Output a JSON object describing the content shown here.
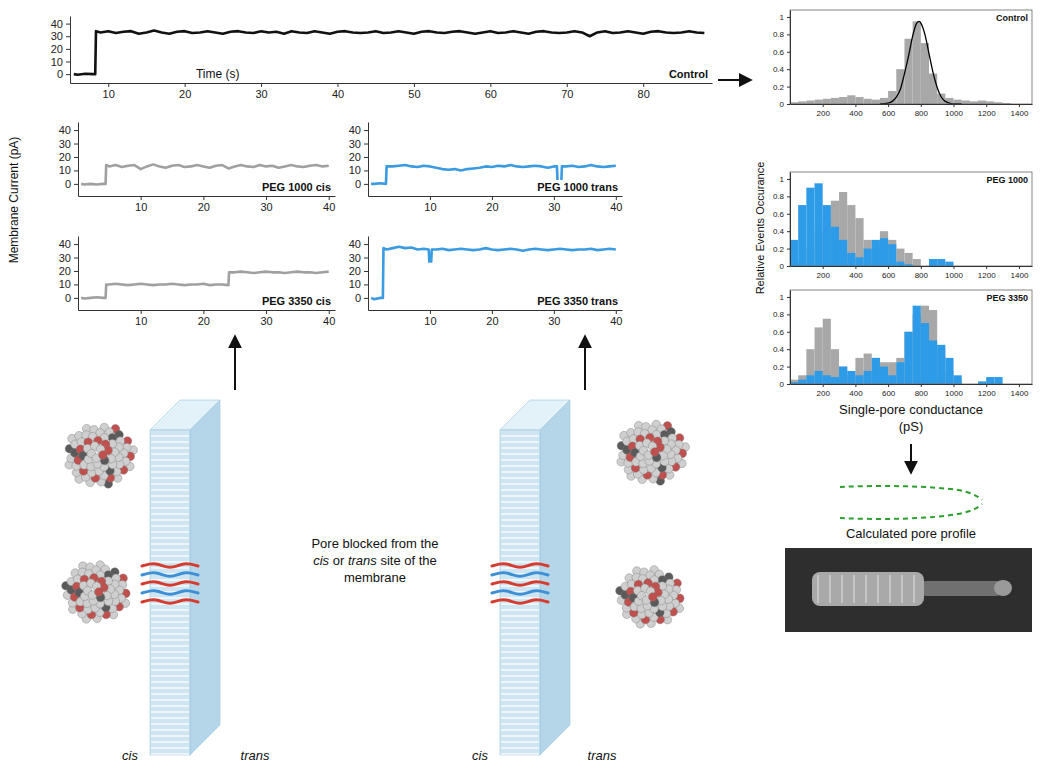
{
  "chart_data": [
    {
      "type": "line",
      "title": "Control",
      "x_label": "Time (s)",
      "color": "#111111",
      "x": [
        5.5,
        6,
        7,
        8,
        8.3,
        8.4,
        9,
        10,
        11,
        12,
        13,
        14,
        15,
        16,
        17,
        18,
        19,
        20,
        21,
        22,
        23,
        24,
        25,
        26,
        27,
        28,
        29,
        30,
        31,
        32,
        33,
        34,
        35,
        36,
        37,
        38,
        39,
        40,
        41,
        42,
        43,
        44,
        45,
        46,
        47,
        48,
        49,
        50,
        51,
        52,
        53,
        54,
        55,
        56,
        57,
        58,
        59,
        60,
        61,
        62,
        63,
        64,
        65,
        66,
        67,
        68,
        69,
        70,
        71,
        72,
        73,
        74,
        75,
        76,
        77,
        78,
        79,
        80,
        81,
        82,
        83,
        84,
        85,
        86,
        87,
        88
      ],
      "values": [
        0,
        -0.5,
        0.3,
        0,
        0,
        34,
        33,
        34,
        32.5,
        33.5,
        34,
        32,
        33,
        34.5,
        33,
        32,
        33.5,
        34,
        32.5,
        33,
        34,
        33,
        32,
        33.5,
        34,
        33,
        32.5,
        34,
        33,
        33.5,
        32,
        34,
        33,
        32.5,
        34,
        33,
        32,
        33.5,
        34,
        33,
        32.5,
        33,
        34,
        32.5,
        33,
        34,
        33,
        32,
        33.5,
        34,
        33,
        32.5,
        33.5,
        34,
        33,
        32,
        33,
        34,
        32.5,
        33,
        34,
        33,
        32,
        33.5,
        34,
        33,
        32.5,
        33,
        34,
        33,
        30,
        33,
        34,
        32.5,
        33,
        34,
        33,
        32,
        33.5,
        34,
        33,
        32.5,
        33,
        34,
        33,
        32.5
      ],
      "xlim": [
        5,
        89
      ],
      "xticks": [
        10,
        20,
        30,
        40,
        50,
        60,
        70,
        80
      ],
      "ylim": [
        -7,
        46
      ],
      "yticks": [
        0,
        10,
        20,
        30,
        40
      ]
    },
    {
      "type": "line",
      "title": "PEG 1000 cis",
      "color": "#a0a0a0",
      "x": [
        0.5,
        1,
        2,
        3,
        4,
        4.4,
        4.5,
        5,
        6,
        7,
        8,
        9,
        10,
        11,
        12,
        13,
        14,
        15,
        16,
        17,
        18,
        19,
        20,
        21,
        22,
        23,
        24,
        25,
        26,
        27,
        28,
        29,
        30,
        31,
        32,
        33,
        34,
        35,
        36,
        37,
        38,
        39,
        40
      ],
      "values": [
        0,
        -0.5,
        0,
        -0.5,
        0,
        0,
        14,
        13,
        14,
        12.5,
        13.5,
        14,
        11,
        13,
        14.5,
        13,
        12,
        13.5,
        14,
        12.5,
        13,
        14,
        13,
        12,
        13.5,
        14,
        11.5,
        13,
        14,
        13,
        12.5,
        14,
        13,
        13.5,
        12,
        13,
        14,
        13,
        12.5,
        13.5,
        14,
        13,
        13.5
      ],
      "xlim": [
        0,
        41
      ],
      "xticks": [
        10,
        20,
        30,
        40
      ],
      "ylim": [
        -9,
        46
      ],
      "yticks": [
        0,
        10,
        20,
        30,
        40
      ]
    },
    {
      "type": "line",
      "title": "PEG 1000 trans",
      "color": "#3a9be0",
      "x": [
        0.5,
        1,
        2,
        2.9,
        3,
        4,
        5,
        6,
        7,
        8,
        9,
        10,
        11,
        12,
        13,
        14,
        15,
        16,
        17,
        18,
        19,
        20,
        21,
        22,
        23,
        24,
        25,
        26,
        27,
        28,
        29,
        30,
        30.5,
        30.6,
        31.2,
        31.3,
        32,
        33,
        34,
        35,
        36,
        37,
        38,
        39,
        40
      ],
      "values": [
        0,
        0,
        0.5,
        0,
        13,
        13,
        13.5,
        14,
        13,
        12.5,
        13.5,
        13,
        12,
        11,
        10.5,
        11,
        10,
        11,
        11.5,
        12,
        13,
        12.5,
        13.5,
        13,
        14,
        13,
        12.5,
        13,
        13.5,
        13,
        12,
        13,
        13,
        1,
        1,
        13,
        13,
        13.5,
        12.5,
        13,
        14,
        13,
        12.5,
        13,
        13.5
      ],
      "xlim": [
        0,
        41
      ],
      "xticks": [
        10,
        20,
        30,
        40
      ],
      "ylim": [
        -9,
        46
      ],
      "yticks": [
        0,
        10,
        20,
        30,
        40
      ]
    },
    {
      "type": "line",
      "title": "PEG 3350 cis",
      "color": "#a0a0a0",
      "x": [
        0.5,
        1,
        2,
        3,
        4,
        4.4,
        4.5,
        5,
        6,
        7,
        8,
        9,
        10,
        11,
        12,
        13,
        14,
        15,
        16,
        17,
        18,
        19,
        20,
        21,
        22,
        23,
        24,
        24.1,
        25,
        26,
        27,
        28,
        29,
        30,
        31,
        32,
        33,
        34,
        35,
        36,
        37,
        38,
        39,
        40
      ],
      "values": [
        0,
        -0.5,
        0,
        0.5,
        0,
        0,
        10,
        10,
        10.5,
        10,
        9.5,
        10,
        10.5,
        10,
        9.5,
        10,
        10,
        10.5,
        10,
        9.5,
        10,
        10,
        10.5,
        9.5,
        10,
        10,
        9.5,
        19,
        19,
        19.5,
        19,
        18.5,
        19,
        19.5,
        19,
        19,
        18.5,
        19,
        19.5,
        19,
        19,
        18.5,
        19,
        19.5
      ],
      "xlim": [
        0,
        41
      ],
      "xticks": [
        10,
        20,
        30,
        40
      ],
      "ylim": [
        -9,
        46
      ],
      "yticks": [
        0,
        10,
        20,
        30,
        40
      ]
    },
    {
      "type": "line",
      "title": "PEG 3350 trans",
      "color": "#3a9be0",
      "x": [
        0.5,
        1,
        2,
        2.4,
        2.5,
        3,
        4,
        5,
        6,
        7,
        8,
        9,
        9.8,
        9.9,
        10.2,
        10.3,
        11,
        12,
        13,
        14,
        15,
        16,
        17,
        18,
        19,
        20,
        21,
        22,
        23,
        24,
        25,
        26,
        27,
        28,
        29,
        30,
        31,
        32,
        33,
        34,
        35,
        36,
        37,
        38,
        39,
        40
      ],
      "values": [
        0,
        -1,
        0,
        0,
        37,
        36,
        37,
        38,
        37,
        37.5,
        36,
        36.5,
        36,
        27,
        27,
        36,
        36,
        36.5,
        35.5,
        36,
        36.5,
        36,
        35.5,
        36,
        37,
        36,
        35.5,
        36,
        36.5,
        36,
        35,
        36,
        36.5,
        36,
        35.5,
        36,
        36.5,
        36,
        35.5,
        36,
        36,
        36.5,
        35.5,
        36,
        36.5,
        36
      ],
      "xlim": [
        0,
        41
      ],
      "xticks": [
        10,
        20,
        30,
        40
      ],
      "ylim": [
        -9,
        46
      ],
      "yticks": [
        0,
        10,
        20,
        30,
        40
      ]
    },
    {
      "type": "histogram",
      "title": "Control",
      "bins": [
        0,
        50,
        100,
        150,
        200,
        250,
        300,
        350,
        400,
        450,
        500,
        550,
        600,
        650,
        700,
        750,
        800,
        850,
        900,
        950,
        1000,
        1050,
        1100,
        1150,
        1200,
        1250,
        1300,
        1350,
        1400,
        1450
      ],
      "series": [
        {
          "color": "#a8a8a8",
          "values": [
            0.02,
            0.03,
            0.04,
            0.05,
            0.06,
            0.07,
            0.08,
            0.1,
            0.08,
            0.06,
            0.05,
            0.07,
            0.15,
            0.4,
            0.75,
            0.95,
            0.7,
            0.35,
            0.12,
            0.07,
            0.05,
            0.04,
            0.03,
            0.04,
            0.03,
            0.02,
            0.01,
            0,
            0
          ]
        },
        {
          "type": "line",
          "color": "#000000",
          "x": [
            550,
            600,
            625,
            650,
            675,
            700,
            725,
            750,
            775,
            790,
            800,
            825,
            850,
            875,
            900,
            925,
            950,
            975,
            1000,
            1050
          ],
          "values": [
            0,
            0.01,
            0.03,
            0.08,
            0.17,
            0.35,
            0.55,
            0.78,
            0.93,
            0.95,
            0.93,
            0.8,
            0.58,
            0.36,
            0.19,
            0.08,
            0.03,
            0.01,
            0,
            0
          ]
        }
      ],
      "xlim": [
        0,
        1480
      ],
      "xticks": [
        200,
        400,
        600,
        800,
        1000,
        1200,
        1400
      ],
      "ylim": [
        0,
        1.08
      ],
      "yticks": [
        0,
        0.2,
        0.4,
        0.6,
        0.8,
        1
      ]
    },
    {
      "type": "histogram",
      "title": "PEG 1000",
      "bins": [
        0,
        50,
        100,
        150,
        200,
        250,
        300,
        350,
        400,
        450,
        500,
        550,
        600,
        650,
        700,
        750,
        800,
        850,
        900,
        950,
        1000,
        1050,
        1100,
        1150,
        1200,
        1250,
        1300,
        1350,
        1400,
        1450
      ],
      "series": [
        {
          "color": "#a8a8a8",
          "values": [
            0,
            0.05,
            0.2,
            0.4,
            0.55,
            0.75,
            0.85,
            0.7,
            0.55,
            0.3,
            0.25,
            0.4,
            0.3,
            0.2,
            0.15,
            0.08,
            0,
            0,
            0,
            0,
            0,
            0,
            0,
            0,
            0,
            0,
            0,
            0,
            0
          ]
        },
        {
          "color": "#2e9be8",
          "values": [
            0.3,
            0.7,
            0.9,
            0.95,
            0.7,
            0.45,
            0.3,
            0.15,
            0.1,
            0.2,
            0.3,
            0.32,
            0.25,
            0.05,
            0.02,
            0,
            0,
            0.08,
            0.08,
            0.05,
            0,
            0,
            0,
            0,
            0,
            0,
            0,
            0,
            0
          ]
        }
      ],
      "xlim": [
        0,
        1480
      ],
      "xticks": [
        200,
        400,
        600,
        800,
        1000,
        1200,
        1400
      ],
      "ylim": [
        0,
        1.08
      ],
      "yticks": [
        0,
        0.2,
        0.4,
        0.6,
        0.8,
        1
      ]
    },
    {
      "type": "histogram",
      "title": "PEG 3350",
      "bins": [
        0,
        50,
        100,
        150,
        200,
        250,
        300,
        350,
        400,
        450,
        500,
        550,
        600,
        650,
        700,
        750,
        800,
        850,
        900,
        950,
        1000,
        1050,
        1100,
        1150,
        1200,
        1250,
        1300,
        1350,
        1400,
        1450
      ],
      "series": [
        {
          "color": "#a8a8a8",
          "values": [
            0.05,
            0.1,
            0.4,
            0.65,
            0.75,
            0.4,
            0.2,
            0.1,
            0.3,
            0.35,
            0.3,
            0.25,
            0.25,
            0.3,
            0.6,
            0.8,
            0.9,
            0.85,
            0.4,
            0.15,
            0.05,
            0,
            0,
            0,
            0,
            0,
            0,
            0,
            0
          ]
        },
        {
          "color": "#2e9be8",
          "values": [
            0.02,
            0.05,
            0.1,
            0.15,
            0.1,
            0.08,
            0.2,
            0.15,
            0.1,
            0.15,
            0.3,
            0.2,
            0.1,
            0.25,
            0.6,
            0.9,
            0.7,
            0.5,
            0.45,
            0.3,
            0.1,
            0,
            0,
            0.03,
            0.08,
            0.08,
            0,
            0,
            0
          ]
        }
      ],
      "xlim": [
        0,
        1480
      ],
      "xticks": [
        200,
        400,
        600,
        800,
        1000,
        1200,
        1400
      ],
      "ylim": [
        0,
        1.08
      ],
      "yticks": [
        0,
        0.2,
        0.4,
        0.6,
        0.8,
        1
      ]
    }
  ],
  "labels": {
    "current": "Membrane Current (pA)",
    "occurrence": "Relative Events Occurance",
    "conductance": "Single-pore conductance (pS)"
  },
  "diagram": {
    "caption": {
      "lines": [
        [
          {
            "text": "Pore blocked from the"
          }
        ],
        [
          {
            "text": "cis",
            "italic": true
          },
          {
            "text": " or "
          },
          {
            "text": "trans",
            "italic": true
          },
          {
            "text": " site of the"
          }
        ],
        [
          {
            "text": "membrane"
          }
        ]
      ]
    },
    "side_labels": [
      [
        "cis",
        "trans"
      ],
      [
        "cis",
        "trans"
      ]
    ],
    "profile_label": "Calculated pore profile"
  }
}
